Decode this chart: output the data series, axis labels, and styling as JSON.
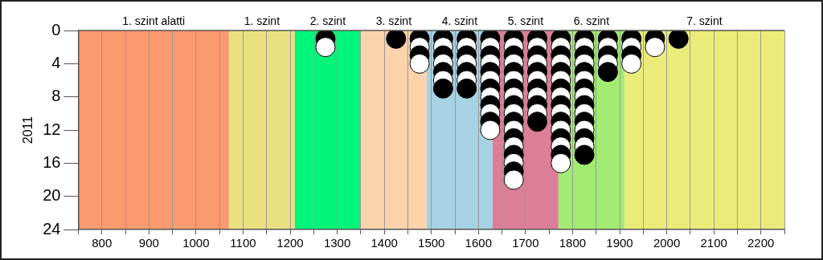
{
  "chart_data": {
    "type": "scatter",
    "ylabel": "2011",
    "xlim": [
      750,
      2250
    ],
    "xticks": [
      {
        "value": 750,
        "label": null
      },
      800,
      {
        "value": 850,
        "label": null
      },
      900,
      {
        "value": 950,
        "label": null
      },
      1000,
      {
        "value": 1050,
        "label": null
      },
      1100,
      {
        "value": 1150,
        "label": null
      },
      1200,
      {
        "value": 1250,
        "label": null
      },
      1300,
      {
        "value": 1350,
        "label": null
      },
      1400,
      {
        "value": 1450,
        "label": null
      },
      1500,
      {
        "value": 1550,
        "label": null
      },
      1600,
      {
        "value": 1650,
        "label": null
      },
      1700,
      {
        "value": 1750,
        "label": null
      },
      1800,
      {
        "value": 1850,
        "label": null
      },
      1900,
      {
        "value": 1950,
        "label": null
      },
      2000,
      {
        "value": 2050,
        "label": null
      },
      2100,
      {
        "value": 2150,
        "label": null
      },
      2200,
      {
        "value": 2250,
        "label": null
      }
    ],
    "ylim": [
      24,
      0
    ],
    "yticks": [
      0,
      4,
      8,
      12,
      16,
      20,
      24
    ],
    "grid": "x",
    "legend": false,
    "marker": "circle",
    "bands": [
      {
        "axis": "x",
        "from": 750,
        "to": 1070,
        "label": "1. szint alatti",
        "color": "#fa9a6e"
      },
      {
        "axis": "x",
        "from": 1070,
        "to": 1210,
        "label": "1. szint",
        "color": "#ebe080"
      },
      {
        "axis": "x",
        "from": 1210,
        "to": 1350,
        "label": "2. szint",
        "color": "#00f57a"
      },
      {
        "axis": "x",
        "from": 1350,
        "to": 1490,
        "label": "3. szint",
        "color": "#fdd3ab"
      },
      {
        "axis": "x",
        "from": 1490,
        "to": 1630,
        "label": "4. szint",
        "color": "#a6d2e3"
      },
      {
        "axis": "x",
        "from": 1630,
        "to": 1770,
        "label": "5. szint",
        "color": "#dc7e98"
      },
      {
        "axis": "x",
        "from": 1770,
        "to": 1910,
        "label": "6. szint",
        "color": "#a2eb72"
      },
      {
        "axis": "x",
        "from": 1910,
        "to": 2250,
        "label": "7. szint",
        "color": "#ebeb7a"
      }
    ],
    "series": [
      {
        "x": [
          1275,
          1275,
          1425,
          1475,
          1475,
          1475,
          1475,
          1525,
          1525,
          1525,
          1525,
          1525,
          1525,
          1525,
          1575,
          1575,
          1575,
          1575,
          1575,
          1575,
          1575,
          1625,
          1625,
          1625,
          1625,
          1625,
          1625,
          1625,
          1625,
          1625,
          1625,
          1625,
          1625,
          1675,
          1675,
          1675,
          1675,
          1675,
          1675,
          1675,
          1675,
          1675,
          1675,
          1675,
          1675,
          1675,
          1675,
          1675,
          1675,
          1675,
          1675,
          1725,
          1725,
          1725,
          1725,
          1725,
          1725,
          1725,
          1725,
          1725,
          1725,
          1725,
          1775,
          1775,
          1775,
          1775,
          1775,
          1775,
          1775,
          1775,
          1775,
          1775,
          1775,
          1775,
          1775,
          1775,
          1775,
          1775,
          1825,
          1825,
          1825,
          1825,
          1825,
          1825,
          1825,
          1825,
          1825,
          1825,
          1825,
          1825,
          1825,
          1825,
          1825,
          1875,
          1875,
          1875,
          1875,
          1875,
          1925,
          1925,
          1925,
          1925,
          1975,
          1975,
          2025
        ],
        "values": [
          1,
          2,
          1,
          1,
          2,
          3,
          4,
          1,
          2,
          3,
          4,
          5,
          6,
          7,
          1,
          2,
          3,
          4,
          5,
          6,
          7,
          1,
          2,
          3,
          4,
          5,
          6,
          7,
          8,
          9,
          10,
          11,
          12,
          1,
          2,
          3,
          4,
          5,
          6,
          7,
          8,
          9,
          10,
          11,
          12,
          13,
          14,
          15,
          16,
          17,
          18,
          1,
          2,
          3,
          4,
          5,
          6,
          7,
          8,
          9,
          10,
          11,
          1,
          2,
          3,
          4,
          5,
          6,
          7,
          8,
          9,
          10,
          11,
          12,
          13,
          14,
          15,
          16,
          1,
          2,
          3,
          4,
          5,
          6,
          7,
          8,
          9,
          10,
          11,
          12,
          13,
          14,
          15,
          1,
          2,
          3,
          4,
          5,
          1,
          2,
          3,
          4,
          1,
          2,
          1
        ],
        "colors": [
          "#000000",
          "#ffffff",
          "#000000",
          "#000000",
          "#ffffff",
          "#000000",
          "#ffffff",
          "#000000",
          "#ffffff",
          "#000000",
          "#ffffff",
          "#000000",
          "#ffffff",
          "#000000",
          "#000000",
          "#ffffff",
          "#000000",
          "#ffffff",
          "#000000",
          "#ffffff",
          "#000000",
          "#000000",
          "#ffffff",
          "#000000",
          "#ffffff",
          "#000000",
          "#ffffff",
          "#000000",
          "#ffffff",
          "#000000",
          "#ffffff",
          "#000000",
          "#ffffff",
          "#000000",
          "#ffffff",
          "#000000",
          "#ffffff",
          "#000000",
          "#ffffff",
          "#000000",
          "#ffffff",
          "#000000",
          "#ffffff",
          "#000000",
          "#ffffff",
          "#000000",
          "#ffffff",
          "#000000",
          "#ffffff",
          "#000000",
          "#ffffff",
          "#000000",
          "#ffffff",
          "#000000",
          "#ffffff",
          "#000000",
          "#ffffff",
          "#000000",
          "#ffffff",
          "#000000",
          "#ffffff",
          "#000000",
          "#000000",
          "#ffffff",
          "#000000",
          "#ffffff",
          "#000000",
          "#ffffff",
          "#000000",
          "#ffffff",
          "#000000",
          "#ffffff",
          "#000000",
          "#ffffff",
          "#000000",
          "#ffffff",
          "#000000",
          "#ffffff",
          "#000000",
          "#ffffff",
          "#000000",
          "#ffffff",
          "#000000",
          "#ffffff",
          "#000000",
          "#ffffff",
          "#000000",
          "#ffffff",
          "#000000",
          "#ffffff",
          "#000000",
          "#ffffff",
          "#000000",
          "#000000",
          "#ffffff",
          "#000000",
          "#ffffff",
          "#000000",
          "#000000",
          "#ffffff",
          "#000000",
          "#ffffff",
          "#000000",
          "#ffffff",
          "#000000"
        ]
      }
    ]
  }
}
